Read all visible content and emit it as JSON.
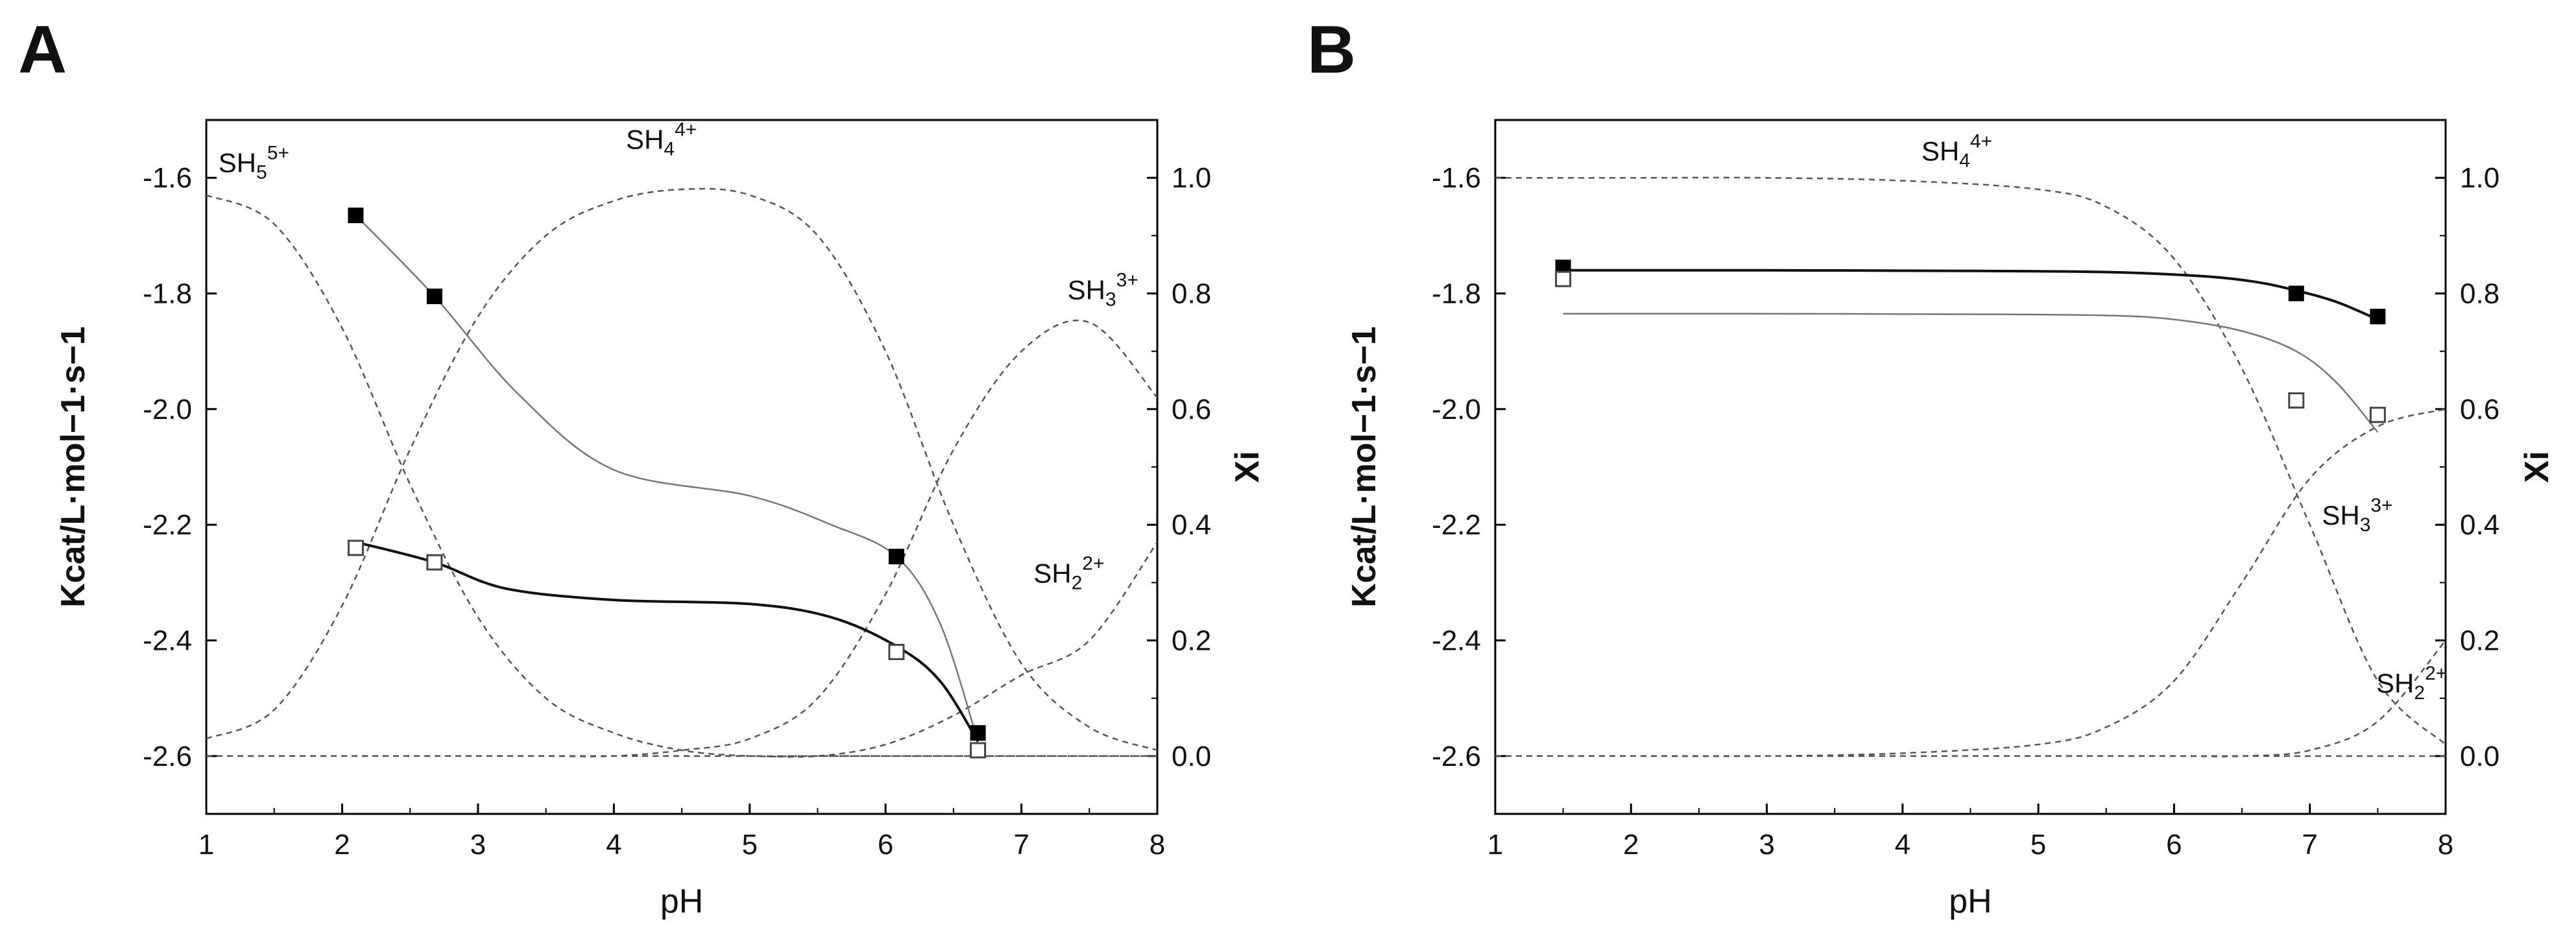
{
  "chart_data": [
    {
      "panel_label": "A",
      "type": "scatter",
      "xlabel": "pH",
      "ylabel_left": "Kcat/L·mol−1·s−1",
      "ylabel_right": "Xi",
      "xlim": [
        1,
        8
      ],
      "ylim_left": [
        -2.7,
        -1.5
      ],
      "ylim_right": [
        -0.1,
        1.1
      ],
      "xticks": [
        "1",
        "2",
        "3",
        "4",
        "5",
        "6",
        "7",
        "8"
      ],
      "yticks_left": [
        "-1.6",
        "-1.8",
        "-2.0",
        "-2.2",
        "-2.4",
        "-2.6"
      ],
      "yticks_right": [
        "0.0",
        "0.2",
        "0.4",
        "0.6",
        "0.8",
        "1.0"
      ],
      "grid": false,
      "series": [
        {
          "marker": "filled-square",
          "x": [
            2.1,
            2.68,
            6.08,
            6.68
          ],
          "y": [
            -1.665,
            -1.805,
            -2.255,
            -2.56
          ]
        },
        {
          "marker": "open-square",
          "x": [
            2.1,
            2.68,
            6.08,
            6.68
          ],
          "y": [
            -2.24,
            -2.265,
            -2.42,
            -2.59
          ]
        }
      ],
      "fit_curves": [
        {
          "color": "#777777",
          "x": [
            2.1,
            2.68,
            3.3,
            4.0,
            5.0,
            5.6,
            6.08,
            6.4,
            6.68
          ],
          "y": [
            -1.665,
            -1.805,
            -1.975,
            -2.105,
            -2.15,
            -2.2,
            -2.255,
            -2.37,
            -2.575
          ]
        },
        {
          "color": "#111111",
          "x": [
            2.1,
            2.68,
            3.2,
            4.0,
            5.0,
            5.6,
            6.08,
            6.4,
            6.68
          ],
          "y": [
            -2.23,
            -2.265,
            -2.31,
            -2.33,
            -2.337,
            -2.36,
            -2.41,
            -2.47,
            -2.575
          ]
        }
      ],
      "species_curves": [
        {
          "name": "SH5",
          "charge": "5+",
          "x": [
            1.0,
            1.5,
            2.0,
            2.5,
            3.0,
            3.5,
            4.0,
            4.5,
            5.0,
            5.5,
            6.0,
            6.5,
            7.0,
            7.5,
            8.0
          ],
          "y": [
            0.97,
            0.92,
            0.74,
            0.47,
            0.24,
            0.1,
            0.04,
            0.01,
            0.0,
            0.0,
            0.0,
            0.0,
            0.0,
            0.0,
            0.0
          ]
        },
        {
          "name": "SH4",
          "charge": "4+",
          "x": [
            1.0,
            1.5,
            2.0,
            2.5,
            3.0,
            3.5,
            4.0,
            4.5,
            5.0,
            5.5,
            6.0,
            6.5,
            7.0,
            7.5,
            8.0
          ],
          "y": [
            0.03,
            0.08,
            0.26,
            0.53,
            0.76,
            0.9,
            0.96,
            0.98,
            0.97,
            0.9,
            0.7,
            0.4,
            0.16,
            0.05,
            0.01
          ]
        },
        {
          "name": "SH3",
          "charge": "3+",
          "x": [
            1.0,
            1.5,
            2.0,
            2.5,
            3.0,
            3.5,
            4.0,
            4.5,
            5.0,
            5.5,
            6.0,
            6.5,
            7.0,
            7.5,
            8.0
          ],
          "y": [
            0.0,
            0.0,
            0.0,
            0.0,
            0.0,
            0.0,
            0.0,
            0.01,
            0.03,
            0.1,
            0.28,
            0.53,
            0.7,
            0.75,
            0.62
          ]
        },
        {
          "name": "SH2",
          "charge": "2+",
          "x": [
            1.0,
            1.5,
            2.0,
            2.5,
            3.0,
            3.5,
            4.0,
            4.5,
            5.0,
            5.5,
            6.0,
            6.5,
            7.0,
            7.5,
            8.0
          ],
          "y": [
            0.0,
            0.0,
            0.0,
            0.0,
            0.0,
            0.0,
            0.0,
            0.0,
            0.0,
            0.0,
            0.02,
            0.07,
            0.14,
            0.2,
            0.37
          ]
        }
      ]
    },
    {
      "panel_label": "B",
      "type": "scatter",
      "xlabel": "pH",
      "ylabel_left": "Kcat/L·mol−1·s−1",
      "ylabel_right": "Xi",
      "xlim": [
        1,
        8
      ],
      "ylim_left": [
        -2.7,
        -1.5
      ],
      "ylim_right": [
        -0.1,
        1.1
      ],
      "xticks": [
        "1",
        "2",
        "3",
        "4",
        "5",
        "6",
        "7",
        "8"
      ],
      "yticks_left": [
        "-1.6",
        "-1.8",
        "-2.0",
        "-2.2",
        "-2.4",
        "-2.6"
      ],
      "yticks_right": [
        "0.0",
        "0.2",
        "0.4",
        "0.6",
        "0.8",
        "1.0"
      ],
      "grid": false,
      "series": [
        {
          "marker": "filled-square",
          "x": [
            1.5,
            6.9,
            7.5
          ],
          "y": [
            -1.755,
            -1.8,
            -1.84
          ]
        },
        {
          "marker": "open-square",
          "x": [
            1.5,
            6.9,
            7.5
          ],
          "y": [
            -1.775,
            -1.985,
            -2.01
          ]
        }
      ],
      "fit_curves": [
        {
          "color": "#111111",
          "x": [
            1.5,
            3.0,
            4.5,
            5.5,
            6.2,
            6.6,
            6.9,
            7.2,
            7.5
          ],
          "y": [
            -1.76,
            -1.76,
            -1.761,
            -1.763,
            -1.77,
            -1.78,
            -1.795,
            -1.815,
            -1.845
          ]
        },
        {
          "color": "#777777",
          "x": [
            1.5,
            3.0,
            4.5,
            5.5,
            6.0,
            6.5,
            6.9,
            7.2,
            7.5
          ],
          "y": [
            -1.835,
            -1.835,
            -1.836,
            -1.838,
            -1.845,
            -1.865,
            -1.9,
            -1.955,
            -2.04
          ]
        }
      ],
      "species_curves": [
        {
          "name": "SH4",
          "charge": "4+",
          "x": [
            1.0,
            2.0,
            3.0,
            4.0,
            5.0,
            5.5,
            6.0,
            6.5,
            7.0,
            7.5,
            8.0
          ],
          "y": [
            1.0,
            1.0,
            1.0,
            0.995,
            0.98,
            0.95,
            0.86,
            0.67,
            0.4,
            0.13,
            0.02
          ]
        },
        {
          "name": "SH3",
          "charge": "3+",
          "x": [
            1.0,
            2.0,
            3.0,
            4.0,
            5.0,
            5.5,
            6.0,
            6.5,
            7.0,
            7.5,
            8.0
          ],
          "y": [
            0.0,
            0.0,
            0.0,
            0.005,
            0.02,
            0.05,
            0.13,
            0.3,
            0.48,
            0.57,
            0.6
          ]
        },
        {
          "name": "SH2",
          "charge": "2+",
          "x": [
            1.0,
            2.0,
            3.0,
            4.0,
            5.0,
            6.0,
            6.5,
            7.0,
            7.5,
            8.0
          ],
          "y": [
            0.0,
            0.0,
            0.0,
            0.0,
            0.0,
            0.0,
            0.0,
            0.01,
            0.06,
            0.2
          ]
        }
      ]
    }
  ]
}
